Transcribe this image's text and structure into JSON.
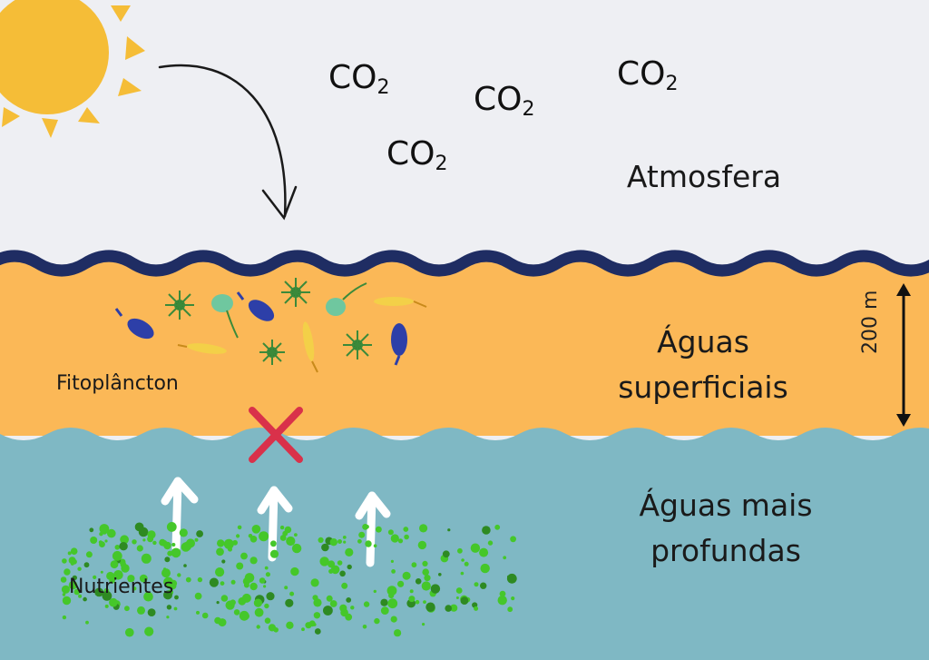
{
  "atmosphere": {
    "label": "Atmosfera",
    "co2_molecules": [
      {
        "base": "CO",
        "sub": "2"
      },
      {
        "base": "CO",
        "sub": "2"
      },
      {
        "base": "CO",
        "sub": "2"
      },
      {
        "base": "CO",
        "sub": "2"
      }
    ]
  },
  "surface": {
    "label_line1": "Águas",
    "label_line2": "superficiais",
    "organisms_label": "Fitoplâncton",
    "depth_label": "200 m"
  },
  "deep": {
    "label_line1": "Águas mais",
    "label_line2": "profundas",
    "nutrients_label": "Nutrientes"
  },
  "colors": {
    "sky": "#eeeff3",
    "sun": "#f5bd37",
    "surface_water": "#fbb857",
    "deep_water": "#7fb8c4",
    "wave": "#1f2d63",
    "blocked_x": "#d9314a",
    "nutrients": "#45c72a"
  }
}
